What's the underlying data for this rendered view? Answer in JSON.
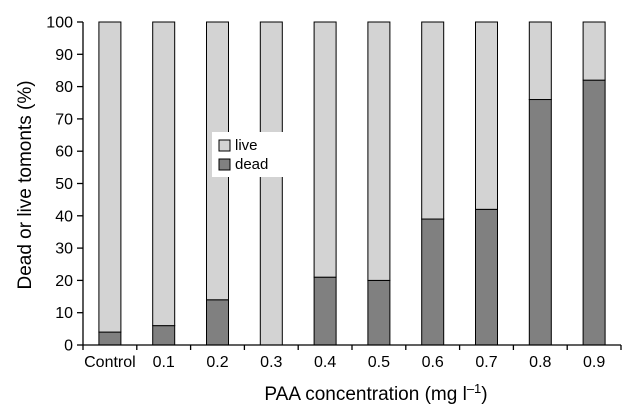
{
  "chart_data": {
    "type": "bar",
    "stacked": true,
    "categories": [
      "Control",
      "0.1",
      "0.2",
      "0.3",
      "0.4",
      "0.5",
      "0.6",
      "0.7",
      "0.8",
      "0.9"
    ],
    "series": [
      {
        "name": "dead",
        "values": [
          4,
          6,
          14,
          0,
          21,
          20,
          39,
          42,
          76,
          82
        ],
        "color": "#808080"
      },
      {
        "name": "live",
        "values": [
          96,
          94,
          86,
          100,
          79,
          80,
          61,
          58,
          24,
          18
        ],
        "color": "#d3d3d3"
      }
    ],
    "xlabel_main": "PAA concentration (mg l",
    "xlabel_sup": "–1",
    "xlabel_end": ")",
    "ylabel": "Dead or live tomonts (%)",
    "ylim": [
      0,
      100
    ],
    "yticks": [
      0,
      10,
      20,
      30,
      40,
      50,
      60,
      70,
      80,
      90,
      100
    ],
    "grid": false,
    "legend_order": [
      "live",
      "dead"
    ]
  }
}
